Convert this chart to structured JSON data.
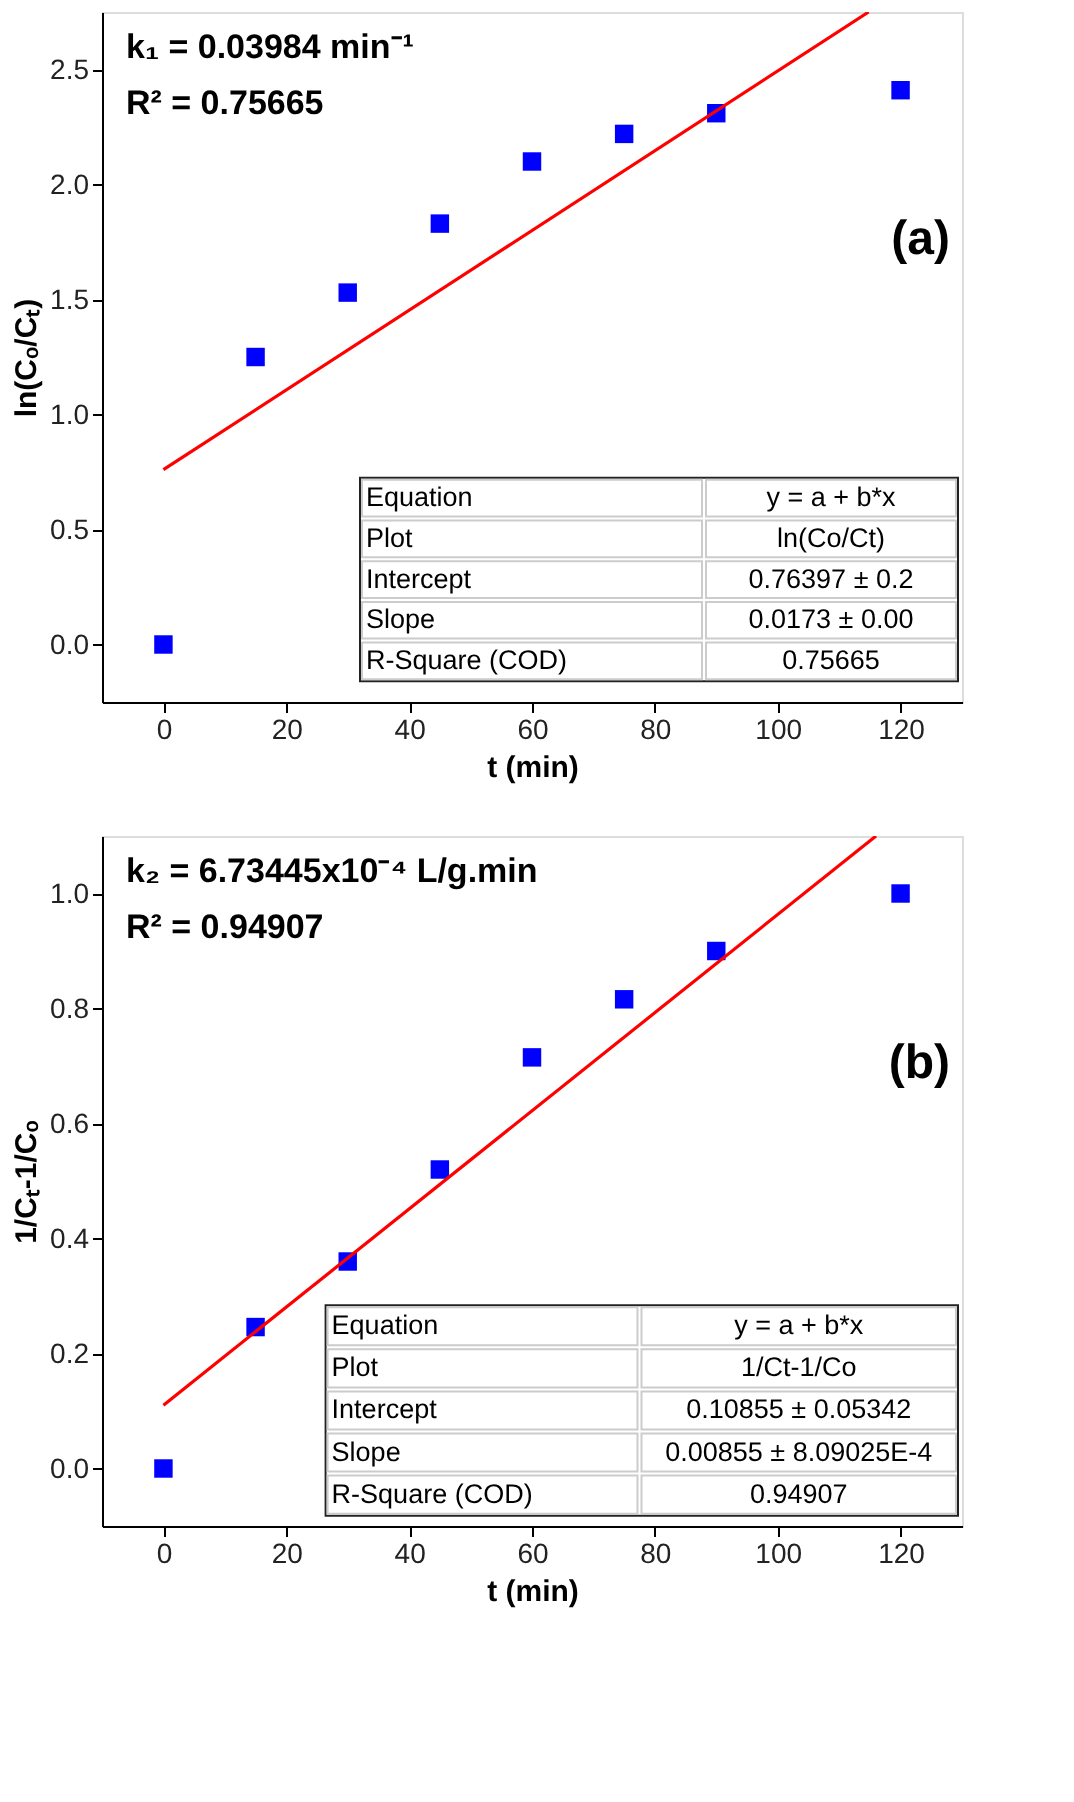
{
  "chart_data": [
    {
      "type": "scatter",
      "xlabel": "t (min)",
      "ylabel": "ln(Cₒ/Cₜ)",
      "x": [
        0,
        15,
        30,
        45,
        60,
        75,
        90,
        120
      ],
      "series": [
        {
          "color": "#0000ff",
          "marker": "square",
          "values": [
            0,
            1.25,
            1.53,
            1.83,
            2.1,
            2.22,
            2.31,
            2.41
          ]
        },
        {
          "type": "line",
          "color": "#ff0000",
          "marker": "none",
          "line_style": "solid",
          "x": [
            0,
            114.8
          ],
          "values": [
            0.76,
            2.75
          ]
        }
      ],
      "xlim": [
        -10,
        130
      ],
      "ylim": [
        -0.25,
        2.75
      ],
      "xticks": [
        0,
        20,
        40,
        60,
        80,
        100,
        120
      ],
      "yticks": [
        {
          "value": 0,
          "label": "0.0"
        },
        0.5,
        {
          "value": 1,
          "label": "1.0"
        },
        1.5,
        {
          "value": 2,
          "label": "2.0"
        },
        2.5
      ],
      "grid": false,
      "annotations": [
        "k₁ = 0.03984 min⁻¹",
        "R² = 0.75665",
        "(a)",
        "Equation",
        "y = a + b*x",
        "Plot",
        "ln(Co/Ct)",
        "Intercept",
        "0.76397 ± 0.2",
        "Slope",
        "0.0173 ± 0.00",
        "R-Square (COD)",
        "0.75665"
      ]
    },
    {
      "type": "scatter",
      "xlabel": "t (min)",
      "ylabel": "1/Cₜ-1/Cₒ",
      "x": [
        0,
        15,
        30,
        45,
        60,
        75,
        90,
        120
      ],
      "series": [
        {
          "color": "#0000ff",
          "marker": "square",
          "values": [
            0,
            0.246,
            0.36,
            0.52,
            0.715,
            0.816,
            0.9,
            1.0
          ]
        },
        {
          "type": "line",
          "color": "#ff0000",
          "marker": "none",
          "line_style": "solid",
          "x": [
            0,
            116
          ],
          "values": [
            0.11,
            1.1
          ]
        }
      ],
      "xlim": [
        -10,
        130
      ],
      "ylim": [
        -0.1,
        1.1
      ],
      "xticks": [
        0,
        20,
        40,
        60,
        80,
        100,
        120
      ],
      "yticks": [
        {
          "value": 0,
          "label": "0.0"
        },
        0.2,
        0.4,
        0.6,
        0.8,
        {
          "value": 1,
          "label": "1.0"
        }
      ],
      "grid": false,
      "annotations": [
        "k₂ = 6.73445x10⁻⁴ L/g.min",
        "R² = 0.94907",
        "(b)",
        "Equation",
        "y = a + b*x",
        "Plot",
        "1/Ct-1/Co",
        "Intercept",
        "0.10855 ± 0.05342",
        "Slope",
        "0.00855 ± 8.09025E-4",
        "R-Square (COD)",
        "0.94907"
      ]
    }
  ]
}
